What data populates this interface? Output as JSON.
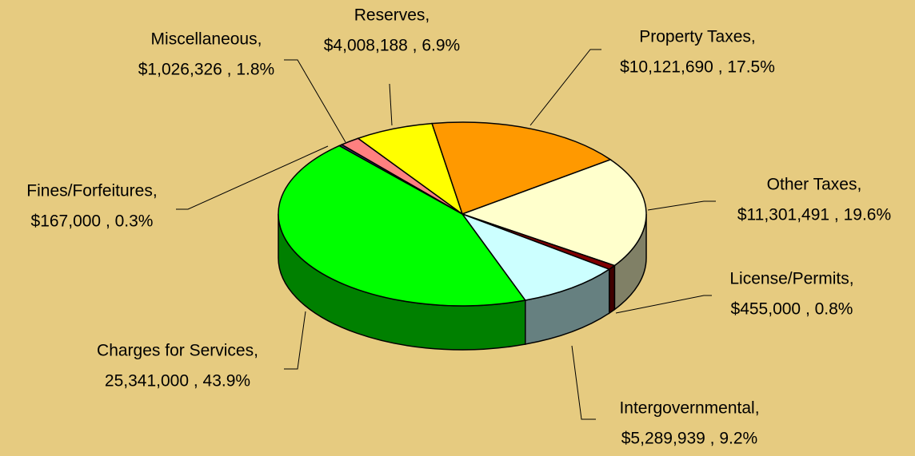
{
  "chart_data": {
    "type": "pie3d",
    "categories": [
      "Property Taxes,",
      "Other Taxes,",
      "License/Permits,",
      "Intergovernmental,",
      "Charges for Services,",
      "Fines/Forfeitures,",
      "Miscellaneous,",
      "Reserves,"
    ],
    "values": [
      10121690,
      11301491,
      455000,
      5289939,
      25341000,
      167000,
      1026326,
      4008188
    ],
    "value_labels": [
      "$10,121,690 , 17.5%",
      "$11,301,491 , 19.6%",
      "$455,000 , 0.8%",
      "$5,289,939 , 9.2%",
      "25,341,000 , 43.9%",
      "$167,000 , 0.3%",
      "$1,026,326 , 1.8%",
      "$4,008,188 , 6.9%"
    ],
    "colors": [
      "#ff9900",
      "#ffffcc",
      "#800000",
      "#ccffff",
      "#00ff00",
      "#333366",
      "#ff8080",
      "#ffff00"
    ]
  }
}
